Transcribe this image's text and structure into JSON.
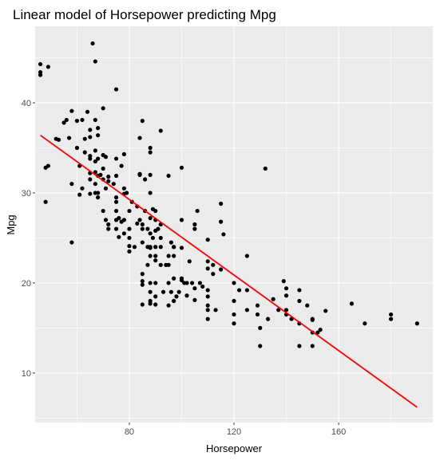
{
  "chart_data": {
    "type": "scatter",
    "title": "Linear model of Horsepower predicting Mpg",
    "xlabel": "Horsepower",
    "ylabel": "Mpg",
    "xlim": [
      44,
      196
    ],
    "ylim": [
      4.5,
      48.5
    ],
    "x_ticks": [
      80,
      120,
      160
    ],
    "y_ticks": [
      10,
      20,
      30,
      40
    ],
    "x_tick_labels": [
      "80",
      "120",
      "160"
    ],
    "y_tick_labels": [
      "10",
      "20",
      "30",
      "40"
    ],
    "grid": true,
    "colors": {
      "panel_background": "#ebebeb",
      "grid_line": "#ffffff",
      "point": "#000000",
      "fit_line": "#ff0000"
    },
    "series": [
      {
        "kind": "points",
        "points": [
          [
            46,
            44.3
          ],
          [
            46,
            43.4
          ],
          [
            46,
            43.1
          ],
          [
            49,
            44.0
          ],
          [
            48,
            29.0
          ],
          [
            48,
            32.8
          ],
          [
            49,
            33.0
          ],
          [
            52,
            36.0
          ],
          [
            53,
            35.9
          ],
          [
            55,
            37.8
          ],
          [
            56,
            38.1
          ],
          [
            57,
            36.1
          ],
          [
            58,
            39.1
          ],
          [
            58,
            31.0
          ],
          [
            58,
            24.5
          ],
          [
            60,
            35.0
          ],
          [
            60,
            38.0
          ],
          [
            61,
            33.0
          ],
          [
            61,
            29.8
          ],
          [
            62,
            30.5
          ],
          [
            62,
            38.1
          ],
          [
            63,
            34.5
          ],
          [
            63,
            36.0
          ],
          [
            64,
            39.0
          ],
          [
            65,
            33.8
          ],
          [
            65,
            37.0
          ],
          [
            65,
            34.1
          ],
          [
            65,
            36.2
          ],
          [
            65,
            31.5
          ],
          [
            65,
            29.9
          ],
          [
            65,
            32.2
          ],
          [
            66,
            46.6
          ],
          [
            67,
            44.6
          ],
          [
            67,
            32.3
          ],
          [
            67,
            38.1
          ],
          [
            67,
            34.7
          ],
          [
            67,
            33.5
          ],
          [
            67,
            31.0
          ],
          [
            67,
            30.0
          ],
          [
            68,
            31.9
          ],
          [
            68,
            29.5
          ],
          [
            68,
            37.2
          ],
          [
            68,
            36.4
          ],
          [
            68,
            33.8
          ],
          [
            68,
            30.0
          ],
          [
            69,
            32.0
          ],
          [
            70,
            39.4
          ],
          [
            70,
            32.7
          ],
          [
            70,
            34.2
          ],
          [
            70,
            31.5
          ],
          [
            70,
            28.0
          ],
          [
            71,
            30.5
          ],
          [
            71,
            27.0
          ],
          [
            71,
            34.0
          ],
          [
            72,
            26.5
          ],
          [
            72,
            26.0
          ],
          [
            72,
            31.8
          ],
          [
            72,
            31.3
          ],
          [
            74,
            31.0
          ],
          [
            75,
            41.5
          ],
          [
            75,
            28.0
          ],
          [
            75,
            29.0
          ],
          [
            75,
            29.5
          ],
          [
            75,
            26.0
          ],
          [
            75,
            27.0
          ],
          [
            75,
            33.8
          ],
          [
            75,
            31.9
          ],
          [
            76,
            25.1
          ],
          [
            76,
            27.2
          ],
          [
            77,
            33.0
          ],
          [
            77,
            26.8
          ],
          [
            78,
            34.3
          ],
          [
            78,
            30.5
          ],
          [
            78,
            27.0
          ],
          [
            78,
            25.5
          ],
          [
            78,
            29.9
          ],
          [
            79,
            30.0
          ],
          [
            80,
            28.0
          ],
          [
            80,
            26.0
          ],
          [
            80,
            23.5
          ],
          [
            80,
            25.0
          ],
          [
            80,
            24.1
          ],
          [
            81,
            29.0
          ],
          [
            82,
            24.0
          ],
          [
            83,
            26.6
          ],
          [
            83,
            28.5
          ],
          [
            84,
            32.1
          ],
          [
            84,
            36.1
          ],
          [
            84,
            27.0
          ],
          [
            84,
            32.0
          ],
          [
            85,
            38.0
          ],
          [
            85,
            24.5
          ],
          [
            85,
            26.0
          ],
          [
            85,
            26.5
          ],
          [
            85,
            21.0
          ],
          [
            85,
            20.2
          ],
          [
            85,
            17.6
          ],
          [
            85,
            19.8
          ],
          [
            86,
            28.0
          ],
          [
            86,
            31.5
          ],
          [
            87,
            26.0
          ],
          [
            87,
            24.0
          ],
          [
            87,
            22.0
          ],
          [
            88,
            34.5
          ],
          [
            88,
            35.0
          ],
          [
            88,
            32.0
          ],
          [
            88,
            27.2
          ],
          [
            88,
            30.0
          ],
          [
            88,
            25.5
          ],
          [
            88,
            24.0
          ],
          [
            88,
            23.9
          ],
          [
            88,
            23.0
          ],
          [
            88,
            20.0
          ],
          [
            88,
            19.0
          ],
          [
            88,
            18.0
          ],
          [
            88,
            17.7
          ],
          [
            89,
            25.0
          ],
          [
            89,
            28.2
          ],
          [
            90,
            24.0
          ],
          [
            90,
            28.0
          ],
          [
            90,
            27.0
          ],
          [
            90,
            25.8
          ],
          [
            90,
            23.0
          ],
          [
            90,
            22.5
          ],
          [
            90,
            20.0
          ],
          [
            90,
            18.5
          ],
          [
            90,
            17.6
          ],
          [
            91,
            26.0
          ],
          [
            92,
            36.9
          ],
          [
            92,
            26.5
          ],
          [
            92,
            25.0
          ],
          [
            92,
            24.0
          ],
          [
            92,
            22.0
          ],
          [
            93,
            19.0
          ],
          [
            94,
            22.0
          ],
          [
            95,
            23.0
          ],
          [
            95,
            17.5
          ],
          [
            95,
            20.0
          ],
          [
            95,
            31.9
          ],
          [
            95,
            22.0
          ],
          [
            96,
            24.5
          ],
          [
            96,
            19.0
          ],
          [
            97,
            24.0
          ],
          [
            97,
            18.0
          ],
          [
            97,
            20.5
          ],
          [
            97,
            23.0
          ],
          [
            97,
            24.0
          ],
          [
            98,
            18.5
          ],
          [
            99,
            19.0
          ],
          [
            100,
            32.8
          ],
          [
            100,
            27.0
          ],
          [
            100,
            23.9
          ],
          [
            100,
            20.3
          ],
          [
            100,
            20.5
          ],
          [
            101,
            20.0
          ],
          [
            102,
            20.0
          ],
          [
            102,
            18.6
          ],
          [
            103,
            22.4
          ],
          [
            104,
            20.0
          ],
          [
            105,
            26.5
          ],
          [
            105,
            19.4
          ],
          [
            105,
            18.1
          ],
          [
            105,
            26.0
          ],
          [
            106,
            28.0
          ],
          [
            107,
            20.0
          ],
          [
            108,
            19.6
          ],
          [
            110,
            24.8
          ],
          [
            110,
            22.4
          ],
          [
            110,
            21.6
          ],
          [
            110,
            19.2
          ],
          [
            110,
            18.5
          ],
          [
            110,
            17.5
          ],
          [
            110,
            17.0
          ],
          [
            110,
            16.0
          ],
          [
            112,
            21.0
          ],
          [
            112,
            22.0
          ],
          [
            113,
            17.0
          ],
          [
            115,
            28.8
          ],
          [
            115,
            26.8
          ],
          [
            115,
            21.5
          ],
          [
            116,
            25.4
          ],
          [
            120,
            20.0
          ],
          [
            120,
            18.0
          ],
          [
            120,
            16.5
          ],
          [
            120,
            15.5
          ],
          [
            122,
            19.2
          ],
          [
            125,
            23.0
          ],
          [
            125,
            19.2
          ],
          [
            125,
            17.0
          ],
          [
            129,
            17.5
          ],
          [
            129,
            16.5
          ],
          [
            130,
            15.0
          ],
          [
            130,
            13.0
          ],
          [
            132,
            32.7
          ],
          [
            133,
            16.0
          ],
          [
            135,
            18.2
          ],
          [
            137,
            17.0
          ],
          [
            139,
            20.2
          ],
          [
            140,
            19.4
          ],
          [
            140,
            18.6
          ],
          [
            140,
            16.5
          ],
          [
            140,
            17.0
          ],
          [
            142,
            16.0
          ],
          [
            145,
            13.0
          ],
          [
            145,
            18.0
          ],
          [
            145,
            19.2
          ],
          [
            145,
            15.5
          ],
          [
            148,
            17.5
          ],
          [
            150,
            16.0
          ],
          [
            150,
            15.9
          ],
          [
            150,
            13.0
          ],
          [
            150,
            14.5
          ],
          [
            152,
            14.5
          ],
          [
            153,
            14.8
          ],
          [
            155,
            16.9
          ],
          [
            165,
            17.7
          ],
          [
            170,
            15.5
          ],
          [
            180,
            16.5
          ],
          [
            180,
            16.0
          ],
          [
            190,
            15.5
          ]
        ]
      },
      {
        "kind": "fit_line",
        "x": [
          46,
          190
        ],
        "y": [
          36.4,
          6.2
        ]
      }
    ]
  }
}
